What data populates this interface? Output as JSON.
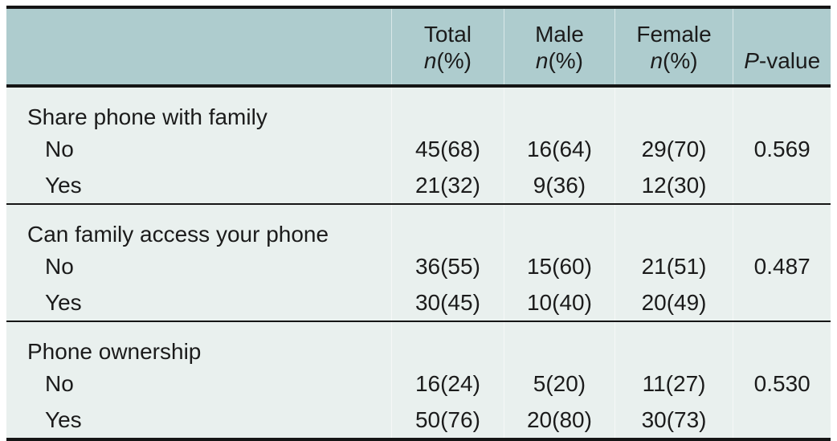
{
  "colors": {
    "header_bg": "#aeccce",
    "body_bg": "#e9f0ee",
    "rule": "#151515",
    "text": "#1b1b1b"
  },
  "header": {
    "label_col": "",
    "total": {
      "title": "Total",
      "unit_italic": "n",
      "unit_rest": "(%)"
    },
    "male": {
      "title": "Male",
      "unit_italic": "n",
      "unit_rest": "(%)"
    },
    "female": {
      "title": "Female",
      "unit_italic": "n",
      "unit_rest": "(%)"
    },
    "pvalue": {
      "italic": "P",
      "rest": "-value"
    }
  },
  "sections": [
    {
      "label": "Share phone with family",
      "rows": [
        {
          "label": "No",
          "total": "45(68)",
          "male": "16(64)",
          "female": "29(70)",
          "pvalue": "0.569"
        },
        {
          "label": "Yes",
          "total": "21(32)",
          "male": "9(36)",
          "female": "12(30)",
          "pvalue": ""
        }
      ]
    },
    {
      "label": "Can family access your phone",
      "rows": [
        {
          "label": "No",
          "total": "36(55)",
          "male": "15(60)",
          "female": "21(51)",
          "pvalue": "0.487"
        },
        {
          "label": "Yes",
          "total": "30(45)",
          "male": "10(40)",
          "female": "20(49)",
          "pvalue": ""
        }
      ]
    },
    {
      "label": "Phone ownership",
      "rows": [
        {
          "label": "No",
          "total": "16(24)",
          "male": "5(20)",
          "female": "11(27)",
          "pvalue": "0.530"
        },
        {
          "label": "Yes",
          "total": "50(76)",
          "male": "20(80)",
          "female": "30(73)",
          "pvalue": ""
        }
      ]
    }
  ]
}
